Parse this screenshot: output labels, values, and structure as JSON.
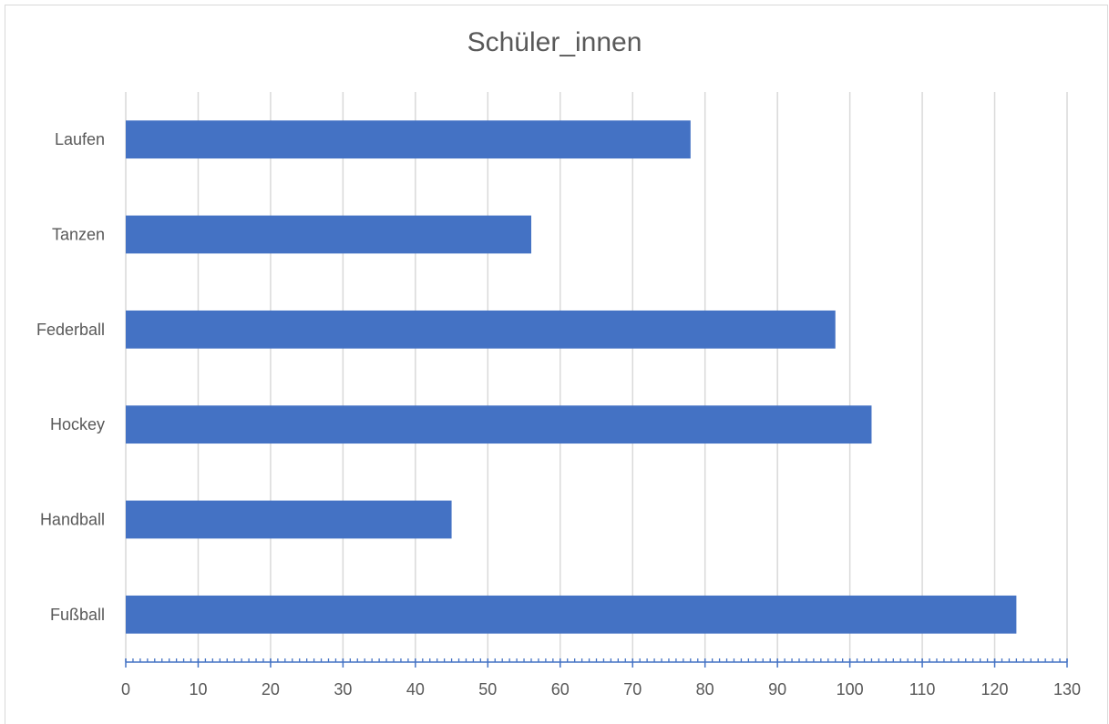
{
  "chart_data": {
    "type": "bar",
    "orientation": "horizontal",
    "title": "Schüler_innen",
    "xlabel": "",
    "ylabel": "",
    "categories": [
      "Laufen",
      "Tanzen",
      "Federball",
      "Hockey",
      "Handball",
      "Fußball"
    ],
    "values": [
      78,
      56,
      98,
      103,
      45,
      123
    ],
    "xlim": [
      0,
      130
    ],
    "xticks": [
      0,
      10,
      20,
      30,
      40,
      50,
      60,
      70,
      80,
      90,
      100,
      110,
      120,
      130
    ],
    "grid": true,
    "legend": "none",
    "bar_color": "#4472c4",
    "axis_color": "#4472c4",
    "grid_color": "#d9d9d9"
  }
}
